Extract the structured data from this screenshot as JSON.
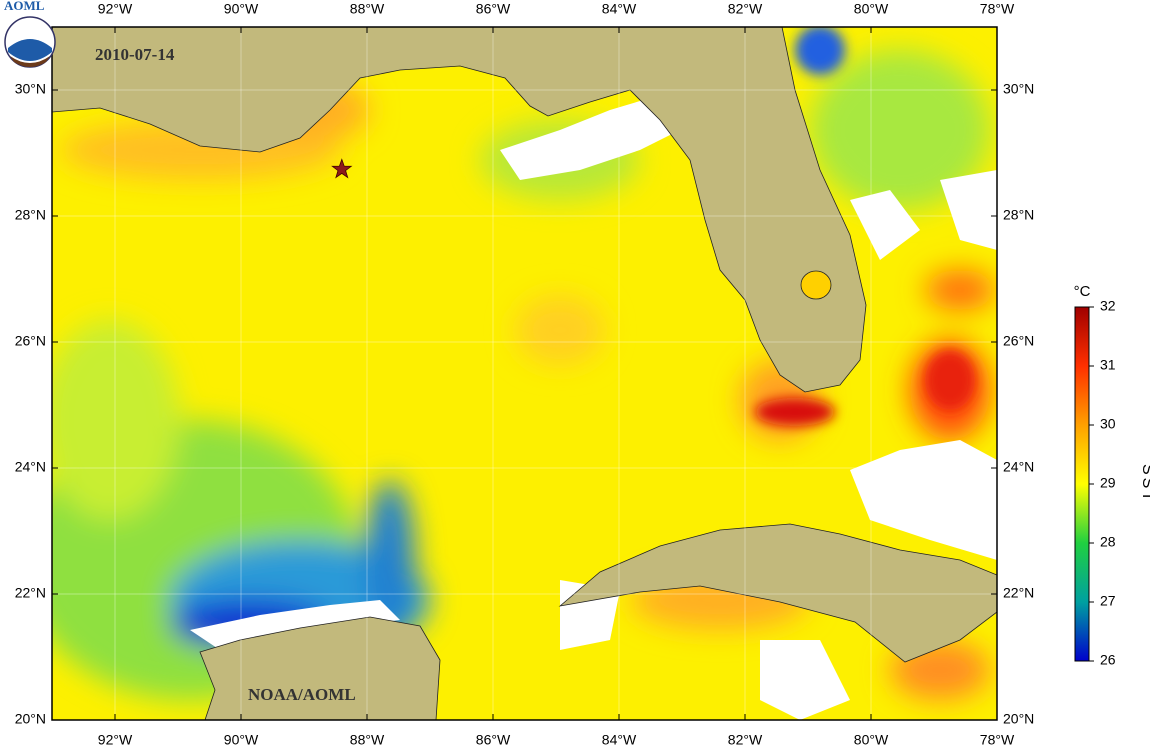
{
  "logo": "AOML",
  "date": "2010-07-14",
  "credit": "NOAA/AOML",
  "map": {
    "lonlim": [
      -93,
      -78
    ],
    "latlim": [
      20,
      31
    ],
    "lonticks": [
      {
        "value": -92,
        "label": "92°W"
      },
      {
        "value": -90,
        "label": "90°W"
      },
      {
        "value": -88,
        "label": "88°W"
      },
      {
        "value": -86,
        "label": "86°W"
      },
      {
        "value": -84,
        "label": "84°W"
      },
      {
        "value": -82,
        "label": "82°W"
      },
      {
        "value": -80,
        "label": "80°W"
      },
      {
        "value": -78,
        "label": "78°W"
      }
    ],
    "latticks": [
      {
        "value": 20,
        "label": "20°N"
      },
      {
        "value": 22,
        "label": "22°N"
      },
      {
        "value": 24,
        "label": "24°N"
      },
      {
        "value": 26,
        "label": "26°N"
      },
      {
        "value": 28,
        "label": "28°N"
      },
      {
        "value": 30,
        "label": "30°N"
      }
    ],
    "grid": true,
    "marker": {
      "lon": -88.4,
      "lat": 28.74,
      "color": "#8b1a1a"
    }
  },
  "colorbar": {
    "label": "SST",
    "unit": "°C",
    "lim": [
      26,
      32
    ],
    "ticks": [
      26,
      27,
      28,
      29,
      30,
      31,
      32
    ],
    "colormap": [
      "#0000cc",
      "#00a0a0",
      "#20d040",
      "#ffff00",
      "#ffa000",
      "#ff3000",
      "#a00000"
    ]
  }
}
